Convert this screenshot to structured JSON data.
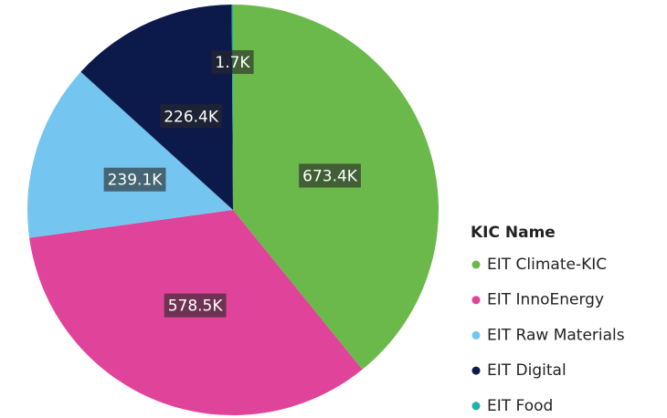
{
  "chart_data": {
    "type": "pie",
    "legend_title": "KIC Name",
    "categories": [
      "EIT Climate-KIC",
      "EIT InnoEnergy",
      "EIT Raw Materials",
      "EIT Digital",
      "EIT Food"
    ],
    "values": [
      673400,
      578500,
      239100,
      226400,
      1700
    ],
    "value_labels": [
      "673.4K",
      "578.5K",
      "239.1K",
      "226.4K",
      "1.7K"
    ],
    "colors": [
      "#6ab94a",
      "#e0439a",
      "#74c5ef",
      "#0c1a4b",
      "#1fb3a8"
    ],
    "legend": "right"
  }
}
